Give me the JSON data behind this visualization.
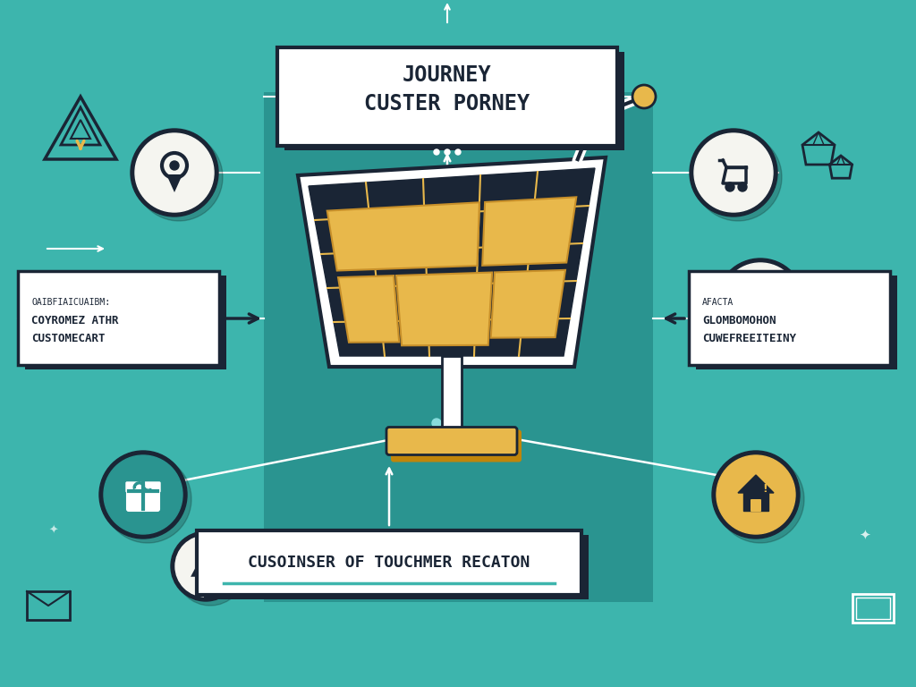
{
  "bg_color": "#3db5ad",
  "bg_dark_color": "#2a9490",
  "title_text": "JOURNEY\nCUSTER PORNEY",
  "subtitle_text": "CUSOINSER OF TOUCHMER RECATON",
  "left_label_top": "OAIBFIAICUAIBM:",
  "left_label1": "COYROMEZ ATHR",
  "left_label2": "CUSTOMECART",
  "right_label_top": "AFACTA",
  "right_label1": "GLOMBOMOHON",
  "right_label2": "CUWEFREEITEINY",
  "cart_fill": "#e8b84b",
  "cart_dark": "#1a2535",
  "cart_grid_color": "#e8b84b",
  "white": "#ffffff",
  "black": "#1a2535",
  "teal_dark": "#1a6b65",
  "gold": "#e8b84b",
  "icon_bg_white": "#f5f5f0",
  "icon_bg_teal": "#2a9490",
  "icon_bg_gold": "#e8b84b",
  "shadow_color": "#1a252588"
}
